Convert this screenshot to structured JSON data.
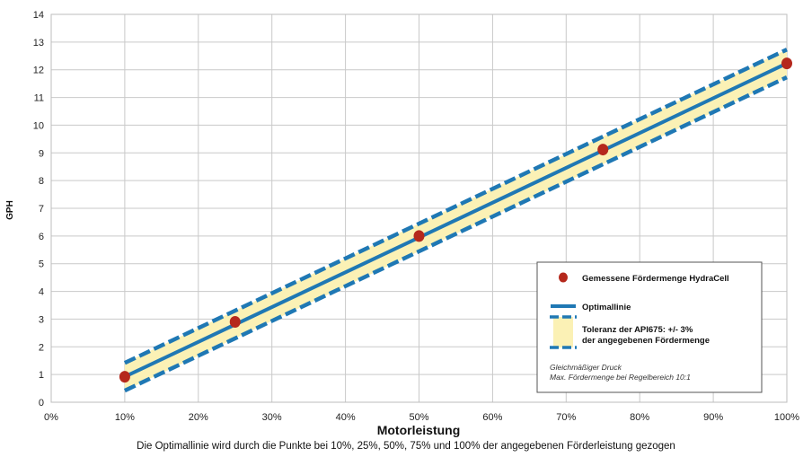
{
  "chart_data": {
    "type": "line",
    "ylabel": "GPH",
    "xlabel": "Motorleistung",
    "caption": "Die Optimallinie wird durch die Punkte bei 10%, 25%, 50%, 75% und 100% der angegebenen Förderleistung gezogen",
    "x_ticks": [
      "0%",
      "10%",
      "20%",
      "30%",
      "40%",
      "50%",
      "60%",
      "70%",
      "80%",
      "90%",
      "100%"
    ],
    "y_ticks": [
      "0",
      "1",
      "2",
      "3",
      "4",
      "5",
      "6",
      "7",
      "8",
      "9",
      "10",
      "11",
      "12",
      "13",
      "14"
    ],
    "xlim": [
      0,
      100
    ],
    "ylim": [
      0,
      14
    ],
    "grid": true,
    "series": [
      {
        "name": "Gemessene Fördermenge HydraCell",
        "type": "scatter",
        "color": "#b5281c",
        "x": [
          10,
          25,
          50,
          75,
          100
        ],
        "y": [
          0.92,
          2.9,
          6.0,
          9.12,
          12.23
        ]
      },
      {
        "name": "Optimallinie",
        "type": "line",
        "color": "#1f78b4",
        "x": [
          10,
          100
        ],
        "y": [
          0.92,
          12.23
        ]
      },
      {
        "name": "Toleranz der API675: +/- 3% der angegebenen Fördermenge",
        "type": "band",
        "fill": "#fbf1b5",
        "color": "#1f78b4",
        "x": [
          10,
          100
        ],
        "upper": [
          1.42,
          12.73
        ],
        "lower": [
          0.42,
          11.73
        ]
      }
    ],
    "legend": {
      "position": "bottom-right",
      "items": [
        "Gemessene Fördermenge HydraCell",
        "Optimallinie",
        "Toleranz der API675: +/- 3%",
        "der angegebenen Fördermenge"
      ],
      "notes": [
        "Gleichmäßiger Druck",
        "Max. Fördermenge bei Regelbereich 10:1"
      ]
    }
  }
}
